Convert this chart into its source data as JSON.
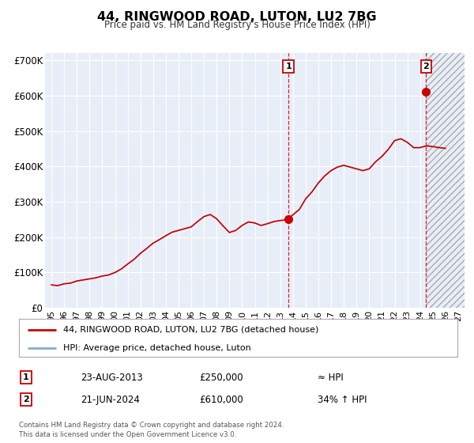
{
  "title": "44, RINGWOOD ROAD, LUTON, LU2 7BG",
  "subtitle": "Price paid vs. HM Land Registry's House Price Index (HPI)",
  "xlim": [
    1994.5,
    2027.5
  ],
  "ylim": [
    0,
    720000
  ],
  "yticks": [
    0,
    100000,
    200000,
    300000,
    400000,
    500000,
    600000,
    700000
  ],
  "ytick_labels": [
    "£0",
    "£100K",
    "£200K",
    "£300K",
    "£400K",
    "£500K",
    "£600K",
    "£700K"
  ],
  "xticks": [
    1995,
    1996,
    1997,
    1998,
    1999,
    2000,
    2001,
    2002,
    2003,
    2004,
    2005,
    2006,
    2007,
    2008,
    2009,
    2010,
    2011,
    2012,
    2013,
    2014,
    2015,
    2016,
    2017,
    2018,
    2019,
    2020,
    2021,
    2022,
    2023,
    2024,
    2025,
    2026,
    2027
  ],
  "xtick_labels": [
    "95",
    "96",
    "97",
    "98",
    "99",
    "00",
    "01",
    "02",
    "03",
    "04",
    "05",
    "06",
    "07",
    "08",
    "09",
    "10",
    "11",
    "12",
    "13",
    "14",
    "15",
    "16",
    "17",
    "18",
    "19",
    "20",
    "21",
    "22",
    "23",
    "24",
    "25",
    "26",
    "27"
  ],
  "plot_bg_color": "#e8eef8",
  "line_color": "#cc0000",
  "hpi_line_color": "#88aacc",
  "sale1_x": 2013.65,
  "sale1_y": 250000,
  "sale2_x": 2024.47,
  "sale2_y": 610000,
  "legend_line1": "44, RINGWOOD ROAD, LUTON, LU2 7BG (detached house)",
  "legend_line2": "HPI: Average price, detached house, Luton",
  "annotation1_date": "23-AUG-2013",
  "annotation1_price": "£250,000",
  "annotation1_hpi": "≈ HPI",
  "annotation2_date": "21-JUN-2024",
  "annotation2_price": "£610,000",
  "annotation2_hpi": "34% ↑ HPI",
  "footnote": "Contains HM Land Registry data © Crown copyright and database right 2024.\nThis data is licensed under the Open Government Licence v3.0.",
  "hpi_anchors": [
    [
      1995.0,
      65000
    ],
    [
      1995.5,
      63000
    ],
    [
      1996.0,
      68000
    ],
    [
      1996.5,
      70000
    ],
    [
      1997.0,
      76000
    ],
    [
      1997.5,
      79000
    ],
    [
      1998.0,
      82000
    ],
    [
      1998.5,
      85000
    ],
    [
      1999.0,
      90000
    ],
    [
      1999.5,
      93000
    ],
    [
      2000.0,
      100000
    ],
    [
      2000.5,
      110000
    ],
    [
      2001.0,
      124000
    ],
    [
      2001.5,
      137000
    ],
    [
      2002.0,
      154000
    ],
    [
      2002.5,
      168000
    ],
    [
      2003.0,
      183000
    ],
    [
      2003.5,
      193000
    ],
    [
      2004.0,
      204000
    ],
    [
      2004.5,
      214000
    ],
    [
      2005.0,
      219000
    ],
    [
      2005.5,
      224000
    ],
    [
      2006.0,
      229000
    ],
    [
      2006.5,
      244000
    ],
    [
      2007.0,
      258000
    ],
    [
      2007.5,
      264000
    ],
    [
      2008.0,
      252000
    ],
    [
      2008.5,
      232000
    ],
    [
      2009.0,
      213000
    ],
    [
      2009.5,
      219000
    ],
    [
      2010.0,
      233000
    ],
    [
      2010.5,
      243000
    ],
    [
      2011.0,
      240000
    ],
    [
      2011.5,
      233000
    ],
    [
      2012.0,
      238000
    ],
    [
      2012.5,
      244000
    ],
    [
      2013.0,
      247000
    ],
    [
      2013.5,
      249000
    ],
    [
      2014.0,
      263000
    ],
    [
      2014.5,
      278000
    ],
    [
      2015.0,
      308000
    ],
    [
      2015.5,
      328000
    ],
    [
      2016.0,
      353000
    ],
    [
      2016.5,
      373000
    ],
    [
      2017.0,
      388000
    ],
    [
      2017.5,
      398000
    ],
    [
      2018.0,
      403000
    ],
    [
      2018.5,
      398000
    ],
    [
      2019.0,
      393000
    ],
    [
      2019.5,
      388000
    ],
    [
      2020.0,
      393000
    ],
    [
      2020.5,
      413000
    ],
    [
      2021.0,
      428000
    ],
    [
      2021.5,
      448000
    ],
    [
      2022.0,
      473000
    ],
    [
      2022.5,
      478000
    ],
    [
      2023.0,
      468000
    ],
    [
      2023.5,
      453000
    ],
    [
      2024.0,
      453000
    ],
    [
      2024.5,
      458000
    ],
    [
      2025.0,
      456000
    ],
    [
      2025.5,
      453000
    ],
    [
      2026.0,
      451000
    ]
  ]
}
